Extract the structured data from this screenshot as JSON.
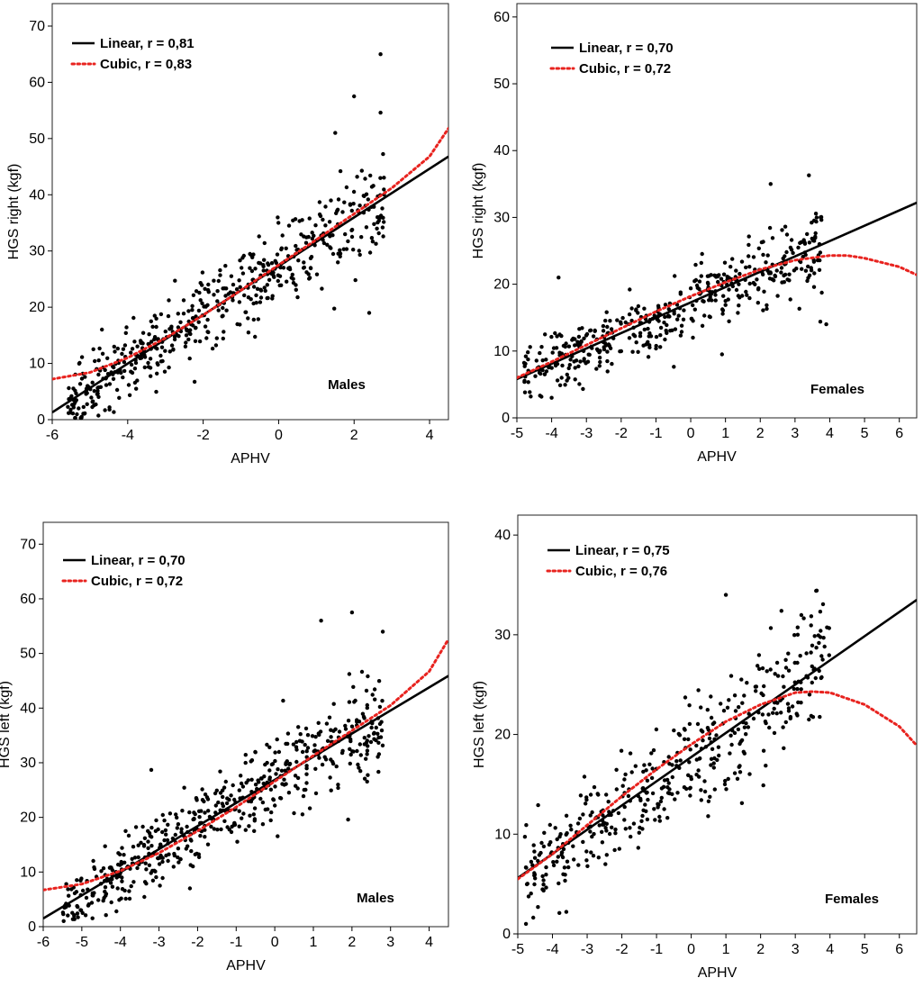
{
  "figure": {
    "background": "#ffffff",
    "point_color": "#000000",
    "linear_color": "#000000",
    "cubic_color": "#e8231f"
  },
  "chart_data": [
    {
      "type": "scatter",
      "id": "males-right",
      "ylabel": "HGS right (kgf)",
      "xlabel": "APHV",
      "group_label": "Males",
      "xlim": [
        -6,
        4.5
      ],
      "ylim": [
        0,
        74
      ],
      "xticks": [
        -6,
        -4,
        -2,
        0,
        2,
        4
      ],
      "yticks": [
        0,
        10,
        20,
        30,
        40,
        50,
        60,
        70
      ],
      "legend": [
        {
          "name": "Linear, r = 0,81",
          "style": "solid"
        },
        {
          "name": "Cubic, r = 0,83",
          "style": "dotted"
        }
      ],
      "linear_fit": {
        "x": [
          -6,
          4.5
        ],
        "y": [
          1.3,
          46.8
        ]
      },
      "cubic_fit": {
        "x": [
          -6,
          -5,
          -4,
          -3,
          -2,
          -1,
          0,
          1,
          2,
          3,
          4,
          4.5
        ],
        "y": [
          7.2,
          8.4,
          11.0,
          14.5,
          18.6,
          23.0,
          27.5,
          32.0,
          36.6,
          41.2,
          46.8,
          51.8
        ]
      },
      "points": {
        "count": 520,
        "x_range": [
          -5.6,
          2.8
        ],
        "slope": 4.33,
        "intercept": 27.3,
        "spread": 3.4,
        "outliers": [
          [
            2.7,
            65.0
          ],
          [
            2.0,
            57.5
          ],
          [
            2.7,
            54.6
          ],
          [
            1.5,
            51.0
          ],
          [
            -5.3,
            2.0
          ],
          [
            -5.1,
            5.1
          ],
          [
            2.4,
            19.0
          ],
          [
            -0.8,
            15.5
          ]
        ]
      }
    },
    {
      "type": "scatter",
      "id": "females-right",
      "ylabel": "HGS right (kgf)",
      "xlabel": "APHV",
      "group_label": "Females",
      "xlim": [
        -5,
        6.5
      ],
      "ylim": [
        0,
        62
      ],
      "xticks": [
        -5,
        -4,
        -3,
        -2,
        -1,
        0,
        1,
        2,
        3,
        4,
        5,
        6
      ],
      "yticks": [
        0,
        10,
        20,
        30,
        40,
        50,
        60
      ],
      "legend": [
        {
          "name": "Linear, r = 0,70",
          "style": "solid"
        },
        {
          "name": "Cubic, r = 0,72",
          "style": "dotted"
        }
      ],
      "linear_fit": {
        "x": [
          -5,
          6.5
        ],
        "y": [
          5.8,
          32.2
        ]
      },
      "cubic_fit": {
        "x": [
          -5,
          -4,
          -3,
          -2,
          -1,
          0,
          1,
          2,
          3,
          4,
          4.5,
          5,
          6,
          6.5
        ],
        "y": [
          6.0,
          8.4,
          10.9,
          13.4,
          15.9,
          18.2,
          20.3,
          22.2,
          23.6,
          24.3,
          24.3,
          23.9,
          22.6,
          21.4
        ]
      },
      "points": {
        "count": 440,
        "x_range": [
          -4.8,
          3.8
        ],
        "slope": 2.3,
        "intercept": 17.3,
        "spread": 2.6,
        "outliers": [
          [
            -3.8,
            21.0
          ],
          [
            3.4,
            36.3
          ],
          [
            2.3,
            35.0
          ],
          [
            3.9,
            14.0
          ],
          [
            0.9,
            9.5
          ],
          [
            -4.6,
            3.2
          ],
          [
            -4.0,
            3.0
          ]
        ]
      }
    },
    {
      "type": "scatter",
      "id": "males-left",
      "ylabel": "HGS left (kgf)",
      "xlabel": "APHV",
      "group_label": "Males",
      "xlim": [
        -6,
        4.5
      ],
      "ylim": [
        0,
        74
      ],
      "xticks": [
        -6,
        -5,
        -4,
        -3,
        -2,
        -1,
        0,
        1,
        2,
        3,
        4
      ],
      "yticks": [
        0,
        10,
        20,
        30,
        40,
        50,
        60,
        70
      ],
      "legend": [
        {
          "name": "Linear, r = 0,70",
          "style": "solid"
        },
        {
          "name": "Cubic, r = 0,72",
          "style": "dotted"
        }
      ],
      "linear_fit": {
        "x": [
          -6,
          4.5
        ],
        "y": [
          1.5,
          45.9
        ]
      },
      "cubic_fit": {
        "x": [
          -6,
          -5,
          -4,
          -3,
          -2,
          -1,
          0,
          1,
          2,
          3,
          4,
          4.5
        ],
        "y": [
          6.7,
          7.8,
          10.2,
          13.5,
          17.5,
          21.9,
          26.6,
          31.3,
          35.9,
          40.5,
          46.7,
          52.6
        ]
      },
      "points": {
        "count": 540,
        "x_range": [
          -5.5,
          2.8
        ],
        "slope": 4.22,
        "intercept": 26.8,
        "spread": 3.6,
        "outliers": [
          [
            2.0,
            57.5
          ],
          [
            1.2,
            56.0
          ],
          [
            2.8,
            54.0
          ],
          [
            -3.2,
            28.7
          ],
          [
            1.9,
            19.6
          ],
          [
            -5.2,
            2.0
          ],
          [
            -4.9,
            2.1
          ],
          [
            -2.2,
            7.0
          ]
        ]
      }
    },
    {
      "type": "scatter",
      "id": "females-left",
      "ylabel": "HGS left (kgf)",
      "xlabel": "APHV",
      "group_label": "Females",
      "xlim": [
        -5,
        6.5
      ],
      "ylim": [
        0,
        42
      ],
      "xticks": [
        -5,
        -4,
        -3,
        -2,
        -1,
        0,
        1,
        2,
        3,
        4,
        5,
        6
      ],
      "yticks": [
        0,
        10,
        20,
        30,
        40
      ],
      "legend": [
        {
          "name": "Linear, r = 0,75",
          "style": "solid"
        },
        {
          "name": "Cubic, r = 0,76",
          "style": "dotted"
        }
      ],
      "linear_fit": {
        "x": [
          -5,
          6.5
        ],
        "y": [
          5.6,
          33.5
        ]
      },
      "cubic_fit": {
        "x": [
          -5,
          -4,
          -3,
          -2,
          -1,
          0,
          1,
          2,
          3,
          3.5,
          4,
          5,
          6,
          6.5
        ],
        "y": [
          5.5,
          8.0,
          10.9,
          13.8,
          16.5,
          19.0,
          21.3,
          23.0,
          24.2,
          24.3,
          24.2,
          23.0,
          20.8,
          18.9
        ]
      },
      "points": {
        "count": 430,
        "x_range": [
          -4.8,
          4.0
        ],
        "slope": 2.42,
        "intercept": 17.8,
        "spread": 2.9,
        "outliers": [
          [
            1.0,
            34.0
          ],
          [
            3.6,
            34.4
          ],
          [
            2.6,
            32.4
          ],
          [
            -3.8,
            2.1
          ],
          [
            -3.6,
            2.2
          ],
          [
            0.5,
            13.3
          ]
        ]
      }
    }
  ]
}
